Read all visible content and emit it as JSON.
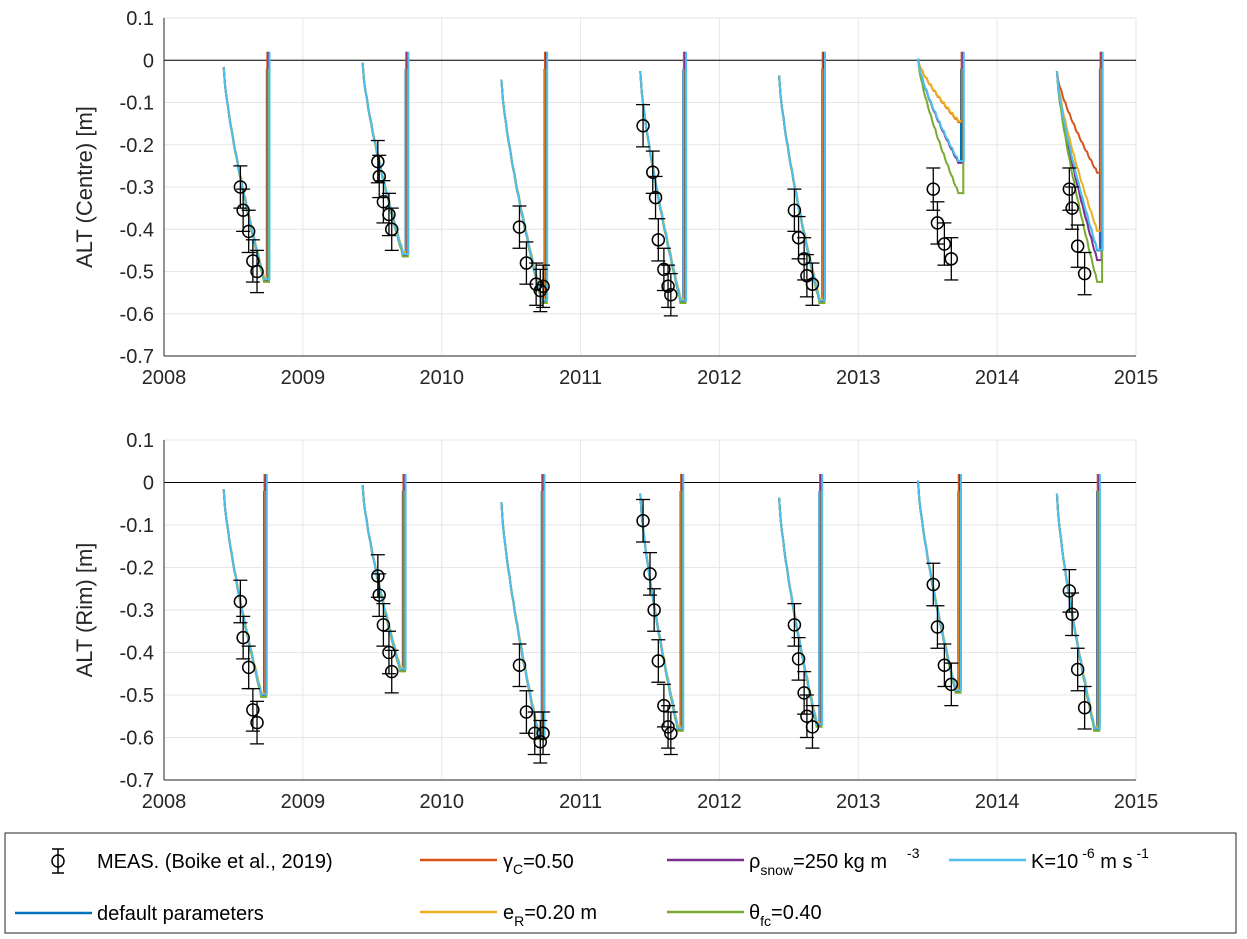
{
  "chart_data": [
    {
      "type": "line",
      "panel": "top",
      "ylabel": "ALT (Centre) [m]",
      "xlim": [
        2008,
        2015
      ],
      "ylim": [
        -0.7,
        0.1
      ],
      "xticks": [
        "2008",
        "2009",
        "2010",
        "2011",
        "2012",
        "2013",
        "2014",
        "2015"
      ],
      "yticks": [
        "0.1",
        "0",
        "-0.1",
        "-0.2",
        "-0.3",
        "-0.4",
        "-0.5",
        "-0.6",
        "-0.7"
      ],
      "grid": true,
      "measurements": [
        {
          "x": 2008.55,
          "y": -0.3
        },
        {
          "x": 2008.57,
          "y": -0.355
        },
        {
          "x": 2008.61,
          "y": -0.405
        },
        {
          "x": 2008.64,
          "y": -0.475
        },
        {
          "x": 2008.67,
          "y": -0.5
        },
        {
          "x": 2009.54,
          "y": -0.24
        },
        {
          "x": 2009.55,
          "y": -0.275
        },
        {
          "x": 2009.58,
          "y": -0.335
        },
        {
          "x": 2009.62,
          "y": -0.365
        },
        {
          "x": 2009.64,
          "y": -0.4
        },
        {
          "x": 2010.56,
          "y": -0.395
        },
        {
          "x": 2010.61,
          "y": -0.48
        },
        {
          "x": 2010.68,
          "y": -0.53
        },
        {
          "x": 2010.71,
          "y": -0.545
        },
        {
          "x": 2010.73,
          "y": -0.535
        },
        {
          "x": 2011.45,
          "y": -0.155
        },
        {
          "x": 2011.52,
          "y": -0.265
        },
        {
          "x": 2011.54,
          "y": -0.325
        },
        {
          "x": 2011.56,
          "y": -0.425
        },
        {
          "x": 2011.6,
          "y": -0.495
        },
        {
          "x": 2011.63,
          "y": -0.535
        },
        {
          "x": 2011.65,
          "y": -0.555
        },
        {
          "x": 2012.54,
          "y": -0.355
        },
        {
          "x": 2012.57,
          "y": -0.42
        },
        {
          "x": 2012.61,
          "y": -0.47
        },
        {
          "x": 2012.63,
          "y": -0.51
        },
        {
          "x": 2012.67,
          "y": -0.53
        },
        {
          "x": 2013.54,
          "y": -0.305
        },
        {
          "x": 2013.57,
          "y": -0.385
        },
        {
          "x": 2013.62,
          "y": -0.435
        },
        {
          "x": 2013.67,
          "y": -0.47
        },
        {
          "x": 2014.52,
          "y": -0.305
        },
        {
          "x": 2014.54,
          "y": -0.35
        },
        {
          "x": 2014.58,
          "y": -0.44
        },
        {
          "x": 2014.63,
          "y": -0.505
        }
      ]
    },
    {
      "type": "line",
      "panel": "bottom",
      "ylabel": "ALT (Rim) [m]",
      "xlim": [
        2008,
        2015
      ],
      "ylim": [
        -0.7,
        0.1
      ],
      "xticks": [
        "2008",
        "2009",
        "2010",
        "2011",
        "2012",
        "2013",
        "2014",
        "2015"
      ],
      "yticks": [
        "0.1",
        "0",
        "-0.1",
        "-0.2",
        "-0.3",
        "-0.4",
        "-0.5",
        "-0.6",
        "-0.7"
      ],
      "grid": true,
      "measurements": [
        {
          "x": 2008.55,
          "y": -0.28
        },
        {
          "x": 2008.57,
          "y": -0.365
        },
        {
          "x": 2008.61,
          "y": -0.435
        },
        {
          "x": 2008.64,
          "y": -0.535
        },
        {
          "x": 2008.67,
          "y": -0.565
        },
        {
          "x": 2009.54,
          "y": -0.22
        },
        {
          "x": 2009.55,
          "y": -0.265
        },
        {
          "x": 2009.58,
          "y": -0.335
        },
        {
          "x": 2009.62,
          "y": -0.4
        },
        {
          "x": 2009.64,
          "y": -0.445
        },
        {
          "x": 2010.56,
          "y": -0.43
        },
        {
          "x": 2010.61,
          "y": -0.54
        },
        {
          "x": 2010.67,
          "y": -0.59
        },
        {
          "x": 2010.71,
          "y": -0.61
        },
        {
          "x": 2010.73,
          "y": -0.59
        },
        {
          "x": 2011.45,
          "y": -0.09
        },
        {
          "x": 2011.5,
          "y": -0.215
        },
        {
          "x": 2011.53,
          "y": -0.3
        },
        {
          "x": 2011.56,
          "y": -0.42
        },
        {
          "x": 2011.6,
          "y": -0.525
        },
        {
          "x": 2011.63,
          "y": -0.575
        },
        {
          "x": 2011.65,
          "y": -0.59
        },
        {
          "x": 2012.54,
          "y": -0.335
        },
        {
          "x": 2012.57,
          "y": -0.415
        },
        {
          "x": 2012.61,
          "y": -0.495
        },
        {
          "x": 2012.63,
          "y": -0.55
        },
        {
          "x": 2012.67,
          "y": -0.575
        },
        {
          "x": 2013.54,
          "y": -0.24
        },
        {
          "x": 2013.57,
          "y": -0.34
        },
        {
          "x": 2013.62,
          "y": -0.43
        },
        {
          "x": 2013.67,
          "y": -0.475
        },
        {
          "x": 2014.52,
          "y": -0.255
        },
        {
          "x": 2014.54,
          "y": -0.31
        },
        {
          "x": 2014.58,
          "y": -0.44
        },
        {
          "x": 2014.63,
          "y": -0.53
        }
      ]
    }
  ],
  "series_colors": {
    "default": "#0072BD",
    "gamma": "#D95319",
    "eR": "#EDB120",
    "rho": "#7E2F8E",
    "theta": "#77AC30",
    "K": "#4DBEEE",
    "meas": "#000000"
  },
  "legend": {
    "meas": "MEAS. (Boike et al., 2019)",
    "default": "default parameters",
    "gamma": {
      "sym": "γ",
      "sub": "C",
      "rest": "=0.50"
    },
    "eR": {
      "sym": "e",
      "sub": "R",
      "rest": "=0.20 m"
    },
    "rho": {
      "sym": "ρ",
      "sub": "snow",
      "rest": "=250 kg m",
      "sup": "-3"
    },
    "theta": {
      "sym": "θ",
      "sub": "fc",
      "rest": "=0.40"
    },
    "K": {
      "pre": "K=10",
      "sup1": "-6",
      "mid": " m s",
      "sup2": "-1"
    }
  }
}
